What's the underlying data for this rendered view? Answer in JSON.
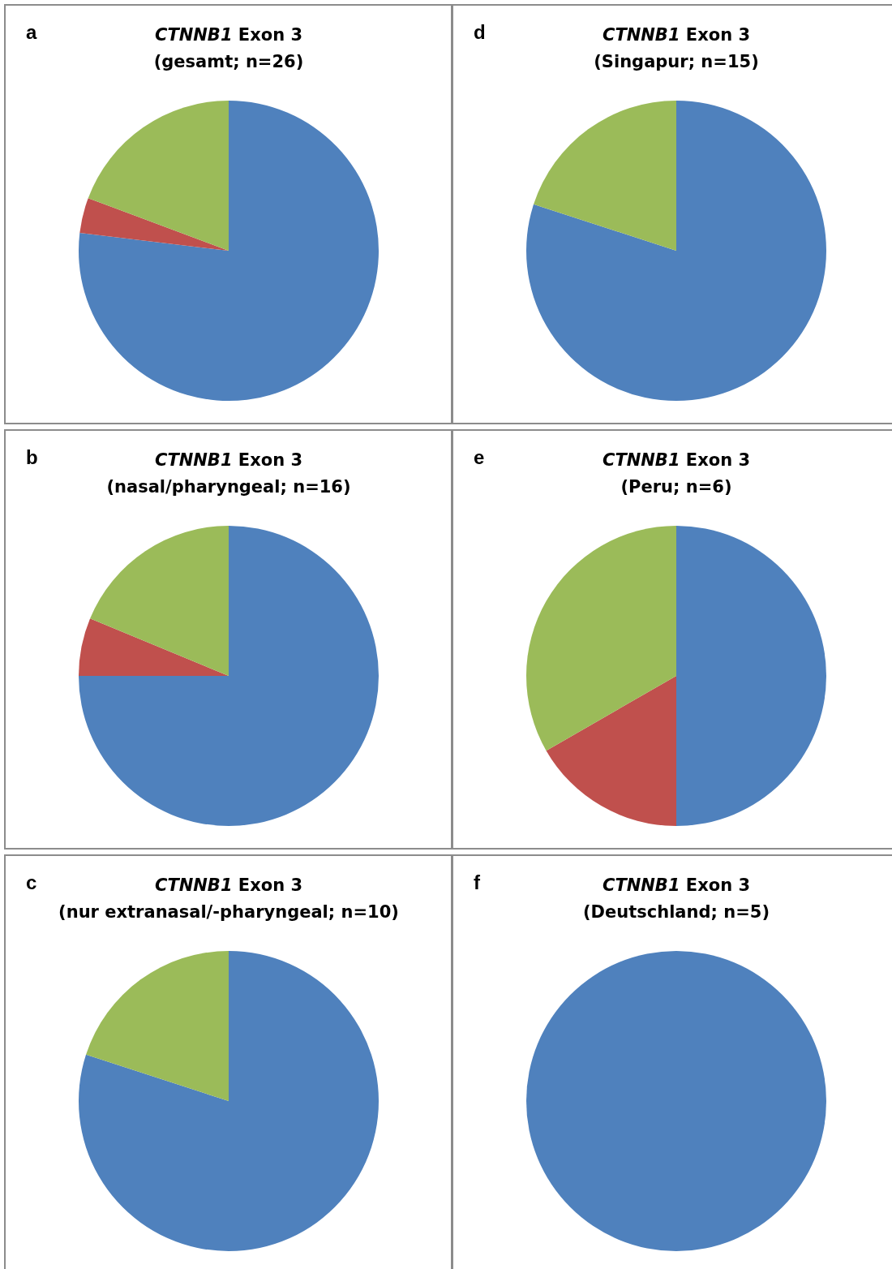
{
  "chart_data": [
    {
      "type": "pie",
      "title": "CTNNB1 Exon 3\n(gesamt; n=26)",
      "annotations": [
        "a"
      ],
      "categories": [
        null,
        null,
        null
      ],
      "values": [
        76.9,
        3.8,
        19.3
      ],
      "colors": [
        "#4f81bd",
        "#c0504d",
        "#9bbb59"
      ]
    },
    {
      "type": "pie",
      "title": "CTNNB1 Exon 3\n(Singapur; n=15)",
      "annotations": [
        "d"
      ],
      "categories": [
        null,
        null
      ],
      "values": [
        80,
        20
      ],
      "colors": [
        "#4f81bd",
        "#9bbb59"
      ]
    },
    {
      "type": "pie",
      "title": "CTNNB1 Exon 3\n(nasal/pharyngeal; n=16)",
      "annotations": [
        "b"
      ],
      "categories": [
        null,
        null,
        null
      ],
      "values": [
        75,
        6.25,
        18.75
      ],
      "colors": [
        "#4f81bd",
        "#c0504d",
        "#9bbb59"
      ]
    },
    {
      "type": "pie",
      "title": "CTNNB1 Exon 3\n(Peru; n=6)",
      "annotations": [
        "e"
      ],
      "categories": [
        null,
        null,
        null
      ],
      "values": [
        50,
        16.7,
        33.3
      ],
      "colors": [
        "#4f81bd",
        "#c0504d",
        "#9bbb59"
      ]
    },
    {
      "type": "pie",
      "title": "CTNNB1 Exon 3\n(nur extranasal/-pharyngeal; n=10)",
      "annotations": [
        "c"
      ],
      "categories": [
        null,
        null
      ],
      "values": [
        80,
        20
      ],
      "colors": [
        "#4f81bd",
        "#9bbb59"
      ]
    },
    {
      "type": "pie",
      "title": "CTNNB1 Exon 3\n(Deutschland; n=5)",
      "annotations": [
        "f"
      ],
      "categories": [
        null
      ],
      "values": [
        100
      ],
      "colors": [
        "#4f81bd"
      ]
    }
  ]
}
